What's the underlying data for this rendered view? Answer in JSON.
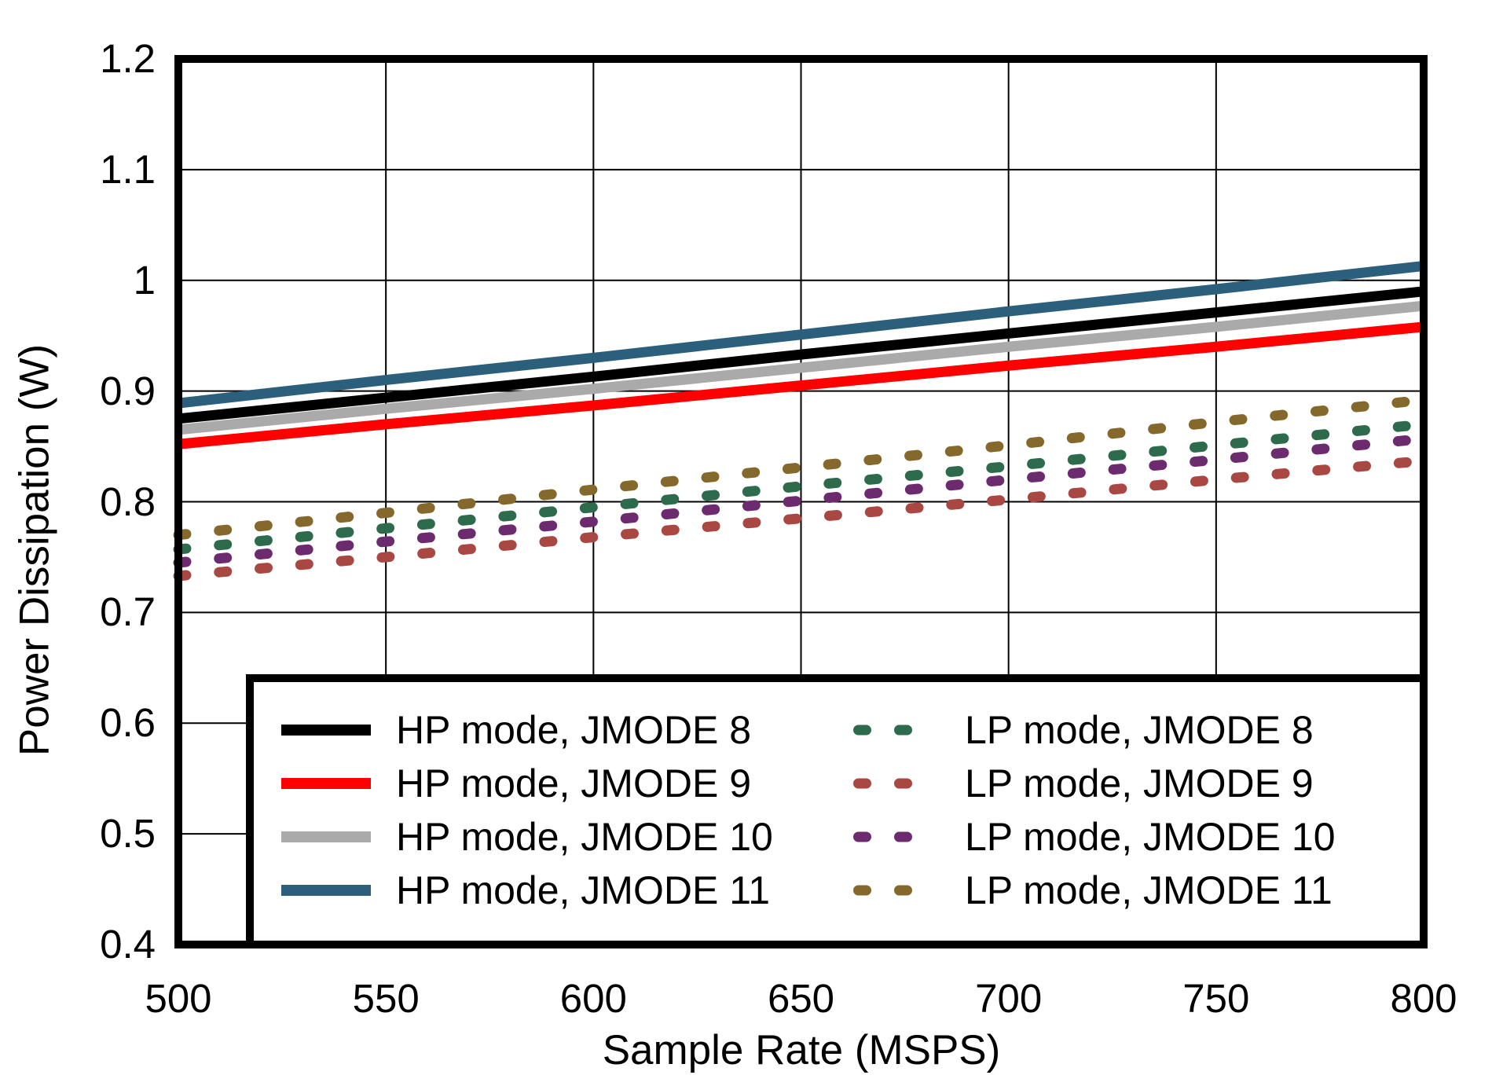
{
  "chart_data": {
    "type": "line",
    "title": "",
    "xlabel": "Sample Rate (MSPS)",
    "ylabel": "Power Dissipation (W)",
    "xlim": [
      500,
      800
    ],
    "ylim": [
      0.4,
      1.2
    ],
    "x_tick_labels": [
      "500",
      "550",
      "600",
      "650",
      "700",
      "750",
      "800"
    ],
    "x_tick_values": [
      500,
      550,
      600,
      650,
      700,
      750,
      800
    ],
    "y_tick_labels": [
      "1.2",
      "1.1",
      "1",
      "0.9",
      "0.8",
      "0.7",
      "0.6",
      "0.5",
      "0.4"
    ],
    "y_tick_values": [
      1.2,
      1.1,
      1.0,
      0.9,
      0.8,
      0.7,
      0.6,
      0.5,
      0.4
    ],
    "grid": true,
    "frame_color": "#000000",
    "grid_color": "#000000",
    "legend_position": "inside-bottom-right",
    "x": [
      500,
      550,
      600,
      650,
      700,
      750,
      800
    ],
    "series": [
      {
        "name": "HP mode, JMODE 8",
        "color": "#000000",
        "style": "solid",
        "values": [
          0.875,
          0.894,
          0.913,
          0.933,
          0.952,
          0.971,
          0.99
        ]
      },
      {
        "name": "HP mode, JMODE 9",
        "color": "#FF0000",
        "style": "solid",
        "values": [
          0.852,
          0.87,
          0.887,
          0.905,
          0.923,
          0.94,
          0.958
        ]
      },
      {
        "name": "HP mode, JMODE 10",
        "color": "#AAAAAA",
        "style": "solid",
        "values": [
          0.865,
          0.884,
          0.902,
          0.921,
          0.94,
          0.958,
          0.977
        ]
      },
      {
        "name": "HP mode, JMODE 11",
        "color": "#2B5F7C",
        "style": "solid",
        "values": [
          0.889,
          0.91,
          0.93,
          0.951,
          0.972,
          0.992,
          1.013
        ]
      },
      {
        "name": "LP mode, JMODE 8",
        "color": "#2E6B4C",
        "style": "dashed",
        "values": [
          0.757,
          0.776,
          0.795,
          0.814,
          0.832,
          0.851,
          0.87
        ]
      },
      {
        "name": "LP mode, JMODE 9",
        "color": "#A94743",
        "style": "dashed",
        "values": [
          0.733,
          0.75,
          0.768,
          0.785,
          0.802,
          0.82,
          0.837
        ]
      },
      {
        "name": "LP mode, JMODE 10",
        "color": "#6C2B6E",
        "style": "dashed",
        "values": [
          0.745,
          0.764,
          0.782,
          0.801,
          0.82,
          0.838,
          0.857
        ]
      },
      {
        "name": "LP mode, JMODE 11",
        "color": "#85692C",
        "style": "dashed",
        "values": [
          0.77,
          0.79,
          0.811,
          0.831,
          0.851,
          0.872,
          0.892
        ]
      }
    ],
    "legend_columns": [
      [
        "HP mode, JMODE 8",
        "HP mode, JMODE 9",
        "HP mode, JMODE 10",
        "HP mode, JMODE 11"
      ],
      [
        "LP mode, JMODE 8",
        "LP mode, JMODE 9",
        "LP mode, JMODE 10",
        "LP mode, JMODE 11"
      ]
    ]
  }
}
